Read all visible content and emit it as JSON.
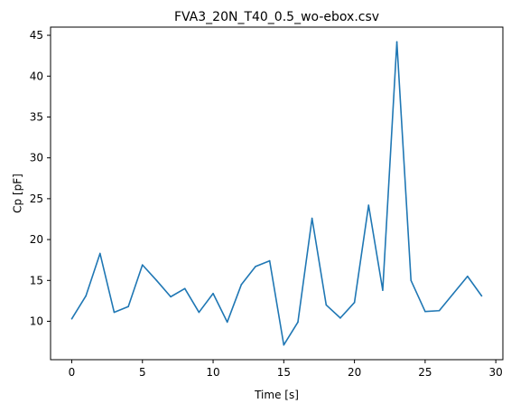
{
  "chart_data": {
    "type": "line",
    "title": "FVA3_20N_T40_0.5_wo-ebox.csv",
    "xlabel": "Time [s]",
    "ylabel": "Cp [pF]",
    "xlim": [
      -1.5,
      30.5
    ],
    "ylim": [
      5.3,
      46.0
    ],
    "xticks": [
      0,
      5,
      10,
      15,
      20,
      25,
      30
    ],
    "yticks": [
      10,
      15,
      20,
      25,
      30,
      35,
      40,
      45
    ],
    "grid": false,
    "legend": "none",
    "series": [
      {
        "color": "#1f77b4",
        "x": [
          0,
          1,
          2,
          3,
          4,
          5,
          6,
          7,
          8,
          9,
          10,
          11,
          12,
          13,
          14,
          15,
          16,
          17,
          18,
          19,
          20,
          21,
          22,
          23,
          24,
          25,
          26,
          27,
          28,
          29
        ],
        "y": [
          10.3,
          13.1,
          18.3,
          11.1,
          11.8,
          16.9,
          15.0,
          13.0,
          14.0,
          11.1,
          13.4,
          9.9,
          14.5,
          16.7,
          17.4,
          7.1,
          9.9,
          22.6,
          12.0,
          10.4,
          12.3,
          24.2,
          13.8,
          44.2,
          15.0,
          11.2,
          11.3,
          13.4,
          15.5,
          13.1
        ]
      }
    ]
  }
}
